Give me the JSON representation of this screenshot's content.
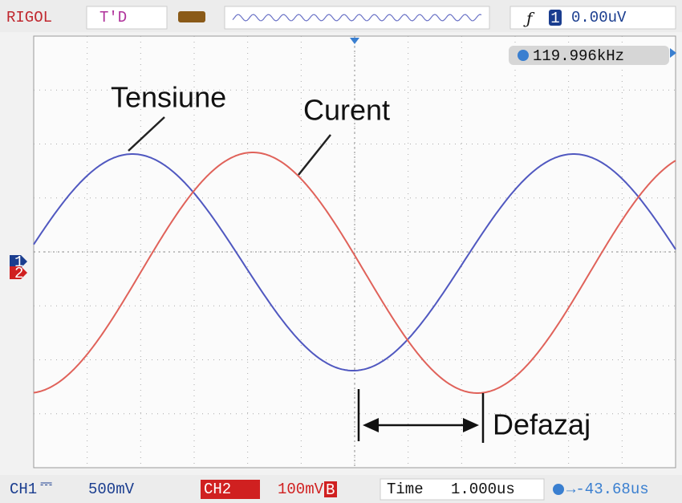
{
  "header": {
    "brand": "RIGOL",
    "mode": "T'D",
    "trigger_channel": "1",
    "trigger_level": "0.00uV"
  },
  "frequency": "119.996kHz",
  "markers": [
    "1",
    "2"
  ],
  "annotations": {
    "voltage": "Tensiune",
    "current": "Curent",
    "phase_shift": "Defazaj"
  },
  "footer": {
    "ch1_label": "CH1",
    "ch1_scale": "500mV",
    "ch2_label": "CH2",
    "ch2_scale": "100mV",
    "bw_limit": "B",
    "time_label": "Time",
    "time_scale": "1.000us",
    "trigger_offset": "→-43.68us"
  }
}
